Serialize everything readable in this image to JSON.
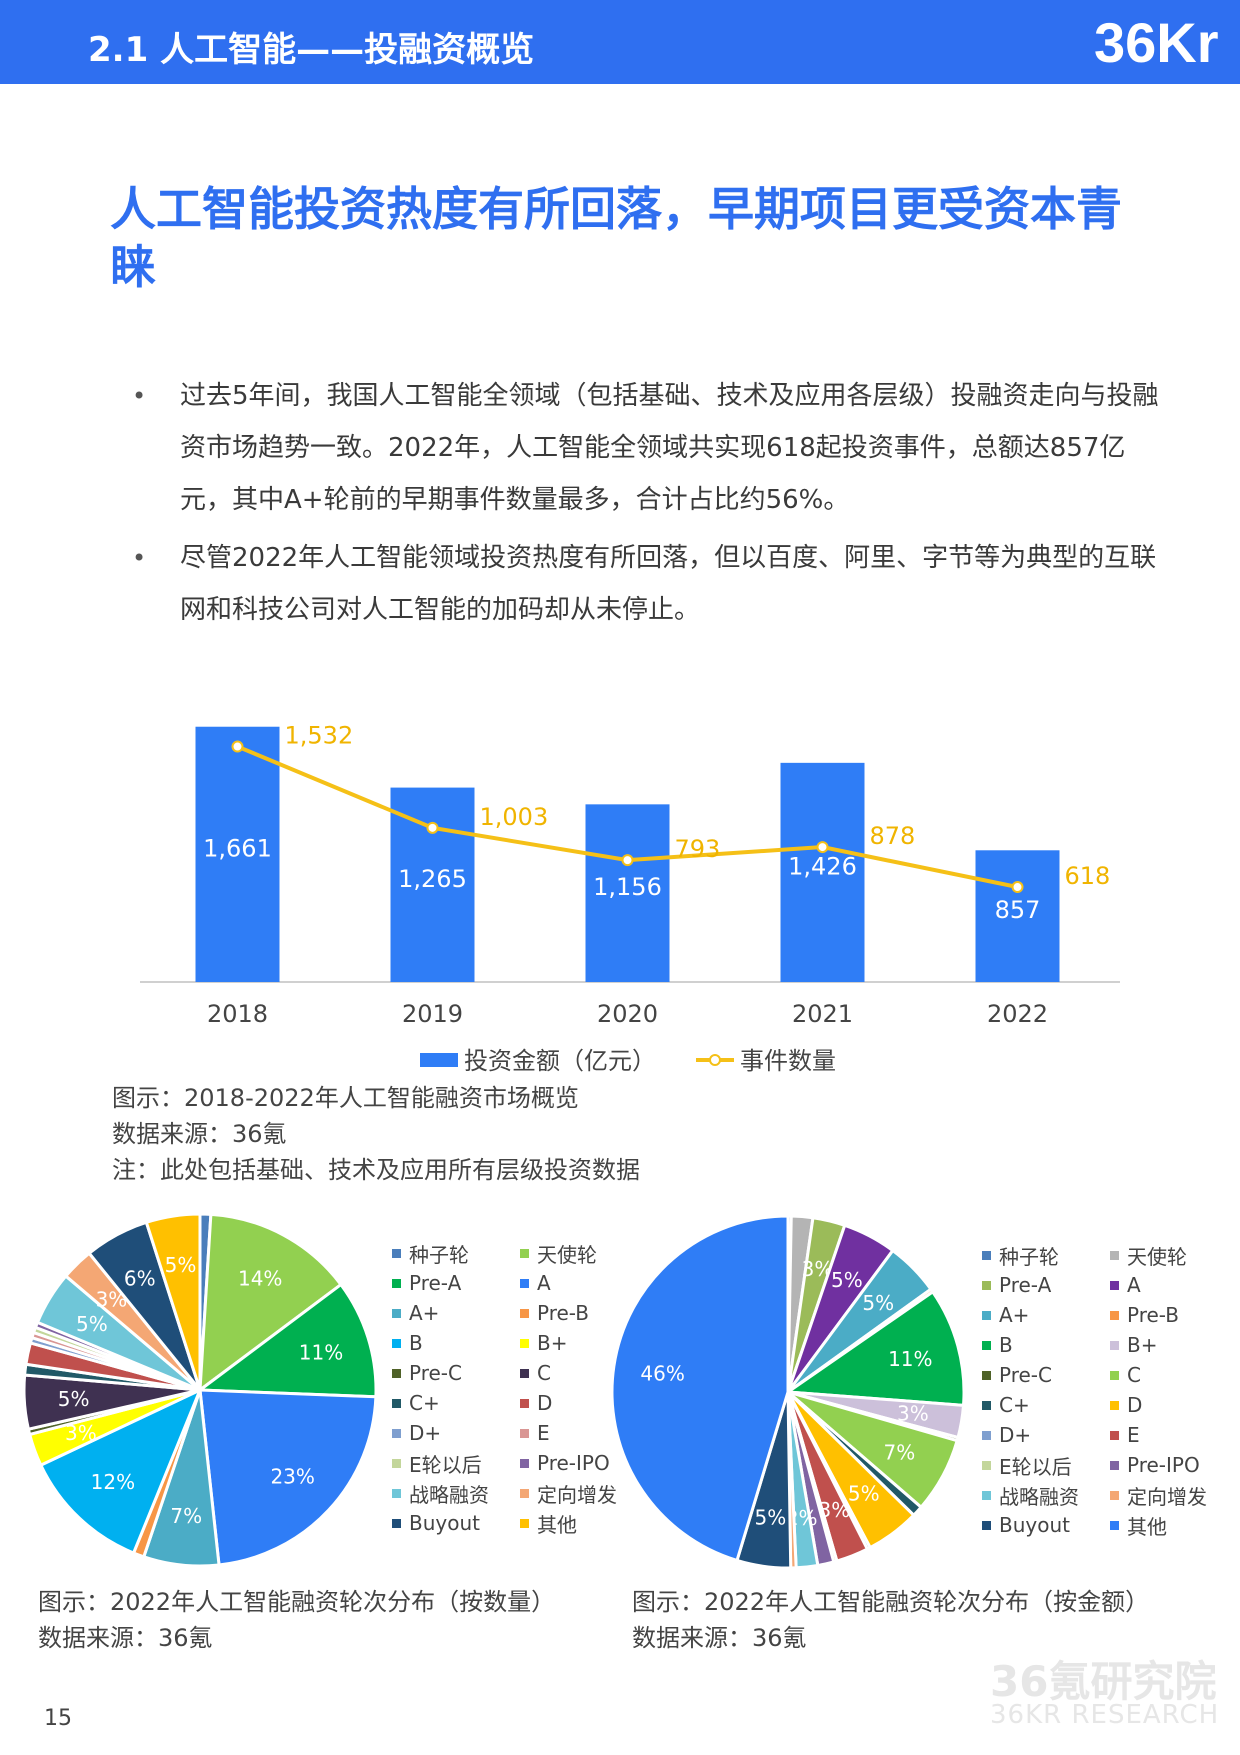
{
  "header": {
    "section_title": "2.1 人工智能——投融资概览",
    "logo_text": "36Kr"
  },
  "headline": "人工智能投资热度有所回落，早期项目更受资本青睐",
  "bullets": [
    "过去5年间，我国人工智能全领域（包括基础、技术及应用各层级）投融资走向与投融资市场趋势一致。2022年，人工智能全领域共实现618起投资事件，总额达857亿元，其中A+轮前的早期事件数量最多，合计占比约56%。",
    "尽管2022年人工智能领域投资热度有所回落，但以百度、阿里、字节等为典型的互联网和科技公司对人工智能的加码却从未停止。"
  ],
  "bullet_symbol": "•",
  "chart_data": [
    {
      "type": "bar",
      "categories": [
        "2018",
        "2019",
        "2020",
        "2021",
        "2022"
      ],
      "series": [
        {
          "name": "投资金额（亿元）",
          "type": "bar",
          "values": [
            1661,
            1265,
            1156,
            1426,
            857
          ],
          "labels": [
            "1,661",
            "1,265",
            "1,156",
            "1,426",
            "857"
          ],
          "color": "#2f7df6"
        },
        {
          "name": "事件数量",
          "type": "line",
          "values": [
            1532,
            1003,
            793,
            878,
            618
          ],
          "labels": [
            "1,532",
            "1,003",
            "793",
            "878",
            "618"
          ],
          "color": "#f5c017"
        }
      ],
      "ylim": [
        0,
        1900
      ],
      "grid": false,
      "legend_position": "bottom"
    },
    {
      "type": "pie",
      "categories": [
        "种子轮",
        "天使轮",
        "Pre-A",
        "A",
        "A+",
        "Pre-B",
        "B",
        "B+",
        "Pre-C",
        "C",
        "C+",
        "D",
        "D+",
        "E",
        "E轮以后",
        "Pre-IPO",
        "战略融资",
        "定向增发",
        "Buyout",
        "其他"
      ],
      "slices": [
        {
          "name": "种子轮",
          "value": 1,
          "label": "",
          "color": "#4a7ebb"
        },
        {
          "name": "天使轮",
          "value": 14,
          "label": "14%",
          "color": "#92d050"
        },
        {
          "name": "Pre-A",
          "value": 11,
          "label": "11%",
          "color": "#00b050"
        },
        {
          "name": "A",
          "value": 23,
          "label": "23%",
          "color": "#2f7df6"
        },
        {
          "name": "A+",
          "value": 7,
          "label": "7%",
          "color": "#4bacc6"
        },
        {
          "name": "Pre-B",
          "value": 1,
          "label": "",
          "color": "#f79646"
        },
        {
          "name": "B",
          "value": 12,
          "label": "12%",
          "color": "#00b0f0"
        },
        {
          "name": "B+",
          "value": 3,
          "label": "3%",
          "color": "#ffff00"
        },
        {
          "name": "Pre-C",
          "value": 0.5,
          "label": "",
          "color": "#4f6228"
        },
        {
          "name": "C",
          "value": 5,
          "label": "5%",
          "color": "#3f3151"
        },
        {
          "name": "C+",
          "value": 1,
          "label": "",
          "color": "#215967"
        },
        {
          "name": "D",
          "value": 2,
          "label": "",
          "color": "#c0504d"
        },
        {
          "name": "D+",
          "value": 0.5,
          "label": "",
          "color": "#7f9fcf"
        },
        {
          "name": "E",
          "value": 0.5,
          "label": "",
          "color": "#d99694"
        },
        {
          "name": "E轮以后",
          "value": 0.5,
          "label": "",
          "color": "#c3d69b"
        },
        {
          "name": "Pre-IPO",
          "value": 0.5,
          "label": "",
          "color": "#8064a2"
        },
        {
          "name": "战略融资",
          "value": 5,
          "label": "5%",
          "color": "#6fc6d8"
        },
        {
          "name": "定向增发",
          "value": 3,
          "label": "3%",
          "color": "#f4a774"
        },
        {
          "name": "Buyout",
          "value": 6,
          "label": "6%",
          "color": "#1f4e79"
        },
        {
          "name": "其他",
          "value": 5,
          "label": "5%",
          "color": "#ffc000"
        }
      ]
    },
    {
      "type": "pie",
      "categories": [
        "种子轮",
        "天使轮",
        "Pre-A",
        "A",
        "A+",
        "Pre-B",
        "B",
        "B+",
        "Pre-C",
        "C",
        "C+",
        "D",
        "D+",
        "E",
        "E轮以后",
        "Pre-IPO",
        "战略融资",
        "定向增发",
        "Buyout",
        "其他"
      ],
      "slices": [
        {
          "name": "种子轮",
          "value": 0.3,
          "label": "",
          "color": "#4a7ebb"
        },
        {
          "name": "天使轮",
          "value": 2,
          "label": "",
          "color": "#b4b4b4"
        },
        {
          "name": "Pre-A",
          "value": 3,
          "label": "3%",
          "color": "#9bbb59"
        },
        {
          "name": "A",
          "value": 5,
          "label": "5%",
          "color": "#7030a0"
        },
        {
          "name": "A+",
          "value": 5,
          "label": "5%",
          "color": "#4bacc6"
        },
        {
          "name": "Pre-B",
          "value": 0.3,
          "label": "",
          "color": "#f79646"
        },
        {
          "name": "B",
          "value": 11,
          "label": "11%",
          "color": "#00b050"
        },
        {
          "name": "B+",
          "value": 3,
          "label": "3%",
          "color": "#ccc0da"
        },
        {
          "name": "Pre-C",
          "value": 0.3,
          "label": "",
          "color": "#4f6228"
        },
        {
          "name": "C",
          "value": 7,
          "label": "7%",
          "color": "#92d050"
        },
        {
          "name": "C+",
          "value": 1,
          "label": "",
          "color": "#215967"
        },
        {
          "name": "D",
          "value": 5,
          "label": "5%",
          "color": "#ffc000"
        },
        {
          "name": "D+",
          "value": 0.3,
          "label": "",
          "color": "#7f9fcf"
        },
        {
          "name": "E",
          "value": 3,
          "label": "3%",
          "color": "#c0504d"
        },
        {
          "name": "E轮以后",
          "value": 0.3,
          "label": "",
          "color": "#c3d69b"
        },
        {
          "name": "Pre-IPO",
          "value": 1.5,
          "label": "",
          "color": "#8064a2"
        },
        {
          "name": "战略融资",
          "value": 2,
          "label": "2%",
          "color": "#6fc6d8"
        },
        {
          "name": "定向增发",
          "value": 0.5,
          "label": "",
          "color": "#f4a774"
        },
        {
          "name": "Buyout",
          "value": 5,
          "label": "5%",
          "color": "#1f4e79"
        },
        {
          "name": "其他",
          "value": 46,
          "label": "46%",
          "color": "#2f7df6"
        }
      ]
    }
  ],
  "captions": {
    "bar_chart": [
      "图示：2018-2022年人工智能融资市场概览",
      "数据来源：36氪",
      "注：此处包括基础、技术及应用所有层级投资数据"
    ],
    "pie_count": [
      "图示：2022年人工智能融资轮次分布（按数量）",
      "数据来源：36氪"
    ],
    "pie_amount": [
      "图示：2022年人工智能融资轮次分布（按金额）",
      "数据来源：36氪"
    ]
  },
  "watermark": {
    "cn": "36氪研究院",
    "en": "36KR RESEARCH"
  },
  "page_number": "15"
}
